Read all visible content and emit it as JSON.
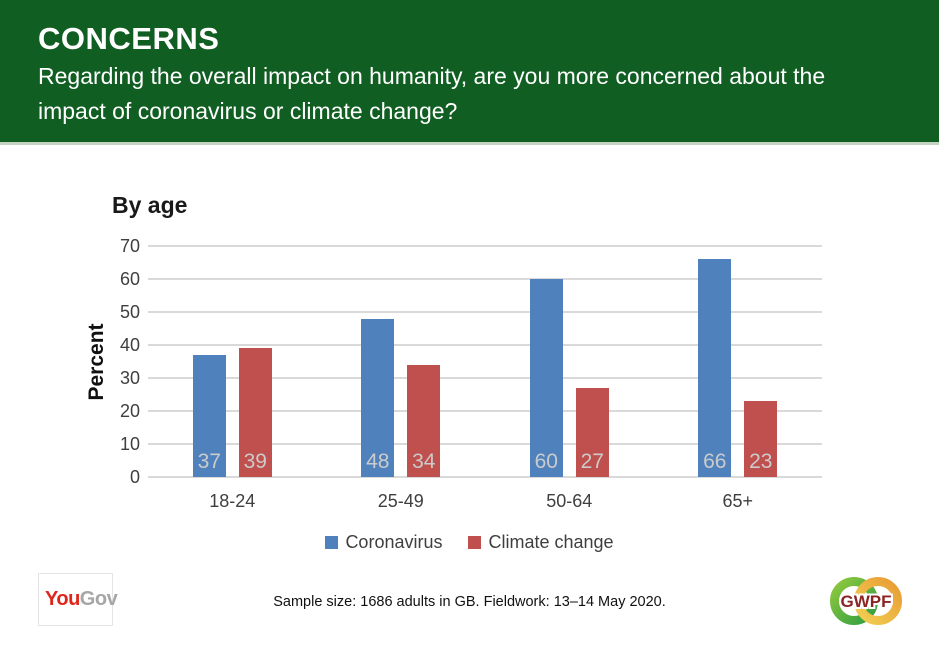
{
  "header": {
    "title": "CONCERNS",
    "subtitle_line1": "Regarding the overall impact on humanity, are you more concerned about the",
    "subtitle_line2": "impact of coronavirus or climate change?",
    "background_color": "#115e23"
  },
  "chart_data": {
    "type": "bar",
    "title": "By age",
    "xlabel": "",
    "ylabel": "Percent",
    "categories": [
      "18-24",
      "25-49",
      "50-64",
      "65+"
    ],
    "series": [
      {
        "name": "Coronavirus",
        "color": "#4f81bd",
        "values": [
          37,
          48,
          60,
          66
        ]
      },
      {
        "name": "Climate change",
        "color": "#c0504d",
        "values": [
          39,
          34,
          27,
          23
        ]
      }
    ],
    "ylim": [
      0,
      70
    ],
    "yticks": [
      0,
      10,
      20,
      30,
      40,
      50,
      60,
      70
    ],
    "grid": true,
    "gridline_color": "#d9d9d9",
    "value_label_color": "#cbcbcb",
    "legend_position": "bottom"
  },
  "footer": {
    "yougov_logo": {
      "part1": "You",
      "part2": "Gov",
      "part1_color": "#e0261c",
      "part2_color": "#a6a6a6"
    },
    "sample_text": "Sample size: 1686 adults in GB. Fieldwork: 13–14 May 2020.",
    "gwpf_logo_text": "GWPF"
  }
}
